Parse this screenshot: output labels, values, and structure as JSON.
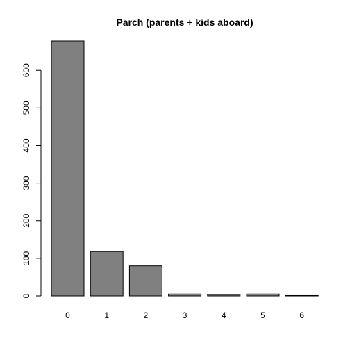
{
  "chart_data": {
    "type": "bar",
    "title": "Parch (parents + kids aboard)",
    "xlabel": "",
    "ylabel": "",
    "categories": [
      "0",
      "1",
      "2",
      "3",
      "4",
      "5",
      "6"
    ],
    "values": [
      678,
      118,
      80,
      5,
      4,
      5,
      1
    ],
    "ylim": [
      0,
      678
    ],
    "yticks": [
      0,
      100,
      200,
      300,
      400,
      500,
      600
    ],
    "grid": false,
    "legend": "none",
    "bar_color": "#808080"
  }
}
